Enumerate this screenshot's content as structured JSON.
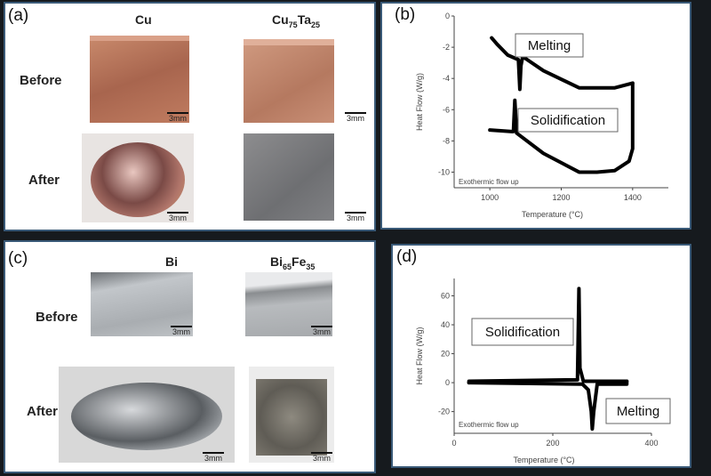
{
  "panel_a": {
    "label": "(a)",
    "columns": [
      "Cu",
      "Cu",
      "75",
      "Ta",
      "25"
    ],
    "rows": [
      "Before",
      "After"
    ],
    "scale": "3mm"
  },
  "panel_c": {
    "label": "(c)",
    "columns": [
      "Bi",
      "Bi",
      "65",
      "Fe",
      "35"
    ],
    "rows": [
      "Before",
      "After"
    ],
    "scale": "3mm"
  },
  "chart_data": [
    {
      "panel": "(b)",
      "type": "line",
      "xlabel": "Temperature (°C)",
      "ylabel": "Heat Flow (W/g)",
      "xlim": [
        900,
        1500
      ],
      "ylim": [
        -11,
        0
      ],
      "xticks": [
        1000,
        1200,
        1400
      ],
      "yticks": [
        0,
        -2,
        -4,
        -6,
        -8,
        -10
      ],
      "annotations": [
        "Melting",
        "Solidification",
        "Exothermic flow up"
      ],
      "series": [
        {
          "name": "Melting",
          "x": [
            1005,
            1020,
            1050,
            1080,
            1084,
            1087,
            1092,
            1150,
            1250,
            1350,
            1400
          ],
          "y": [
            -1.4,
            -1.8,
            -2.5,
            -2.8,
            -4.7,
            -3.2,
            -2.6,
            -3.5,
            -4.6,
            -4.6,
            -4.3
          ]
        },
        {
          "name": "Solidification",
          "x": [
            1400,
            1400,
            1390,
            1350,
            1300,
            1250,
            1150,
            1075,
            1070,
            1066,
            1062,
            1000
          ],
          "y": [
            -4.3,
            -8.5,
            -9.3,
            -9.9,
            -10,
            -10,
            -8.8,
            -7.5,
            -5.4,
            -7.4,
            -7.4,
            -7.3
          ]
        }
      ]
    },
    {
      "panel": "(d)",
      "type": "line",
      "xlabel": "Temperature (°C)",
      "ylabel": "Heat Flow (W/g)",
      "xlim": [
        0,
        400
      ],
      "ylim": [
        -35,
        72
      ],
      "xticks": [
        0,
        200,
        400
      ],
      "yticks": [
        60,
        40,
        20,
        0,
        -20
      ],
      "annotations": [
        "Solidification",
        "Melting",
        "Exothermic flow up"
      ],
      "series": [
        {
          "name": "Melting",
          "x": [
            30,
            260,
            272,
            278,
            280,
            283,
            290,
            350,
            350
          ],
          "y": [
            0,
            -1,
            -5,
            -20,
            -32,
            -20,
            -1,
            -1,
            1
          ]
        },
        {
          "name": "Solidification",
          "x": [
            350,
            262,
            255,
            254,
            253,
            250,
            30,
            30
          ],
          "y": [
            1,
            1,
            10,
            40,
            65,
            2,
            1,
            0
          ]
        }
      ]
    }
  ],
  "colors": {
    "border": "#3a5a78",
    "background": "#161a1e",
    "copper": "#b9745a",
    "bismuth": "#b7bcc0"
  }
}
